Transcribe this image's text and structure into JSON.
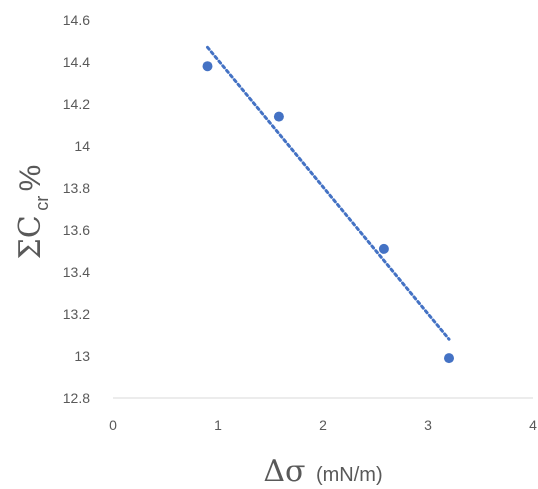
{
  "chart_data": {
    "type": "scatter",
    "x": [
      0.9,
      1.58,
      2.58,
      3.2
    ],
    "y": [
      14.38,
      14.14,
      13.51,
      12.99
    ],
    "trendline": {
      "type": "linear",
      "x_range": [
        0.9,
        3.2
      ],
      "y_range": [
        14.47,
        13.08
      ]
    },
    "xlim": [
      0,
      4
    ],
    "ylim": [
      12.8,
      14.6
    ],
    "x_ticks": [
      "0",
      "1",
      "2",
      "3",
      "4"
    ],
    "y_ticks": [
      "12.8",
      "13",
      "13.2",
      "13.4",
      "13.6",
      "13.8",
      "14",
      "14.2",
      "14.4",
      "14.6"
    ],
    "xlabel_symbol": "Δσ",
    "xlabel_unit": "(mN/m)",
    "ylabel_main": "ΣC",
    "ylabel_sub": "cr",
    "ylabel_suffix": "%",
    "grid": false,
    "legend": "none",
    "colors": {
      "marker": "#4472c4",
      "trendline": "#4472c4",
      "axis": "#d9d9d9",
      "text": "#595959"
    }
  }
}
